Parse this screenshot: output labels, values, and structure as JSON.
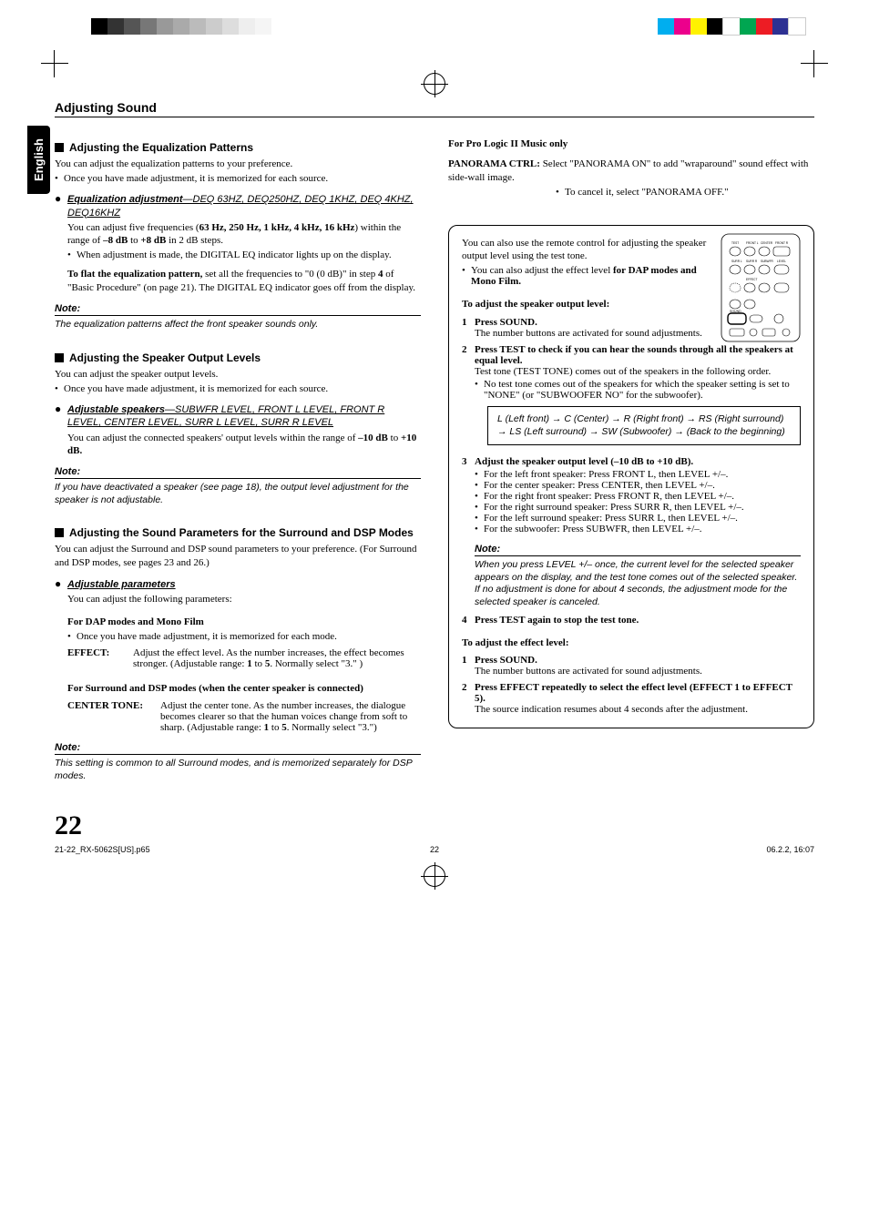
{
  "print": {
    "left_bar_colors": [
      "#000000",
      "#333333",
      "#555555",
      "#777777",
      "#999999",
      "#aaaaaa",
      "#bbbbbb",
      "#cccccc",
      "#dddddd",
      "#eeeeee",
      "#f5f5f5"
    ],
    "right_bar_colors": [
      "#00aeef",
      "#ec008c",
      "#fff200",
      "#000000",
      "#ffffff",
      "#00a651",
      "#ed1c24",
      "#2e3192",
      "#ffffff"
    ]
  },
  "page_number": "22",
  "section_title": "Adjusting Sound",
  "side_tab": "English",
  "left": {
    "eq": {
      "heading": "Adjusting the Equalization Patterns",
      "intro": "You can adjust the equalization patterns to your preference.",
      "intro_bullet": "Once you have made adjustment, it is memorized for each source.",
      "sub_label": "Equalization adjustment",
      "sub_suffix": "—DEQ 63HZ, DEQ250HZ, DEQ 1KHZ, DEQ 4KHZ, DEQ16KHZ",
      "body1_a": "You can adjust five frequencies (",
      "body1_b": "63 Hz, 250 Hz, 1 kHz, 4 kHz, 16 kHz",
      "body1_c": ") within the range of ",
      "body1_d": "–8 dB",
      "body1_e": " to ",
      "body1_f": "+8 dB",
      "body1_g": " in 2 dB steps.",
      "body2": "When adjustment is made, the DIGITAL EQ indicator lights up on the display.",
      "flat_a": "To flat the equalization pattern,",
      "flat_b": " set all the frequencies to \"0 (0 dB)\" in step ",
      "flat_c": "4",
      "flat_d": " of \"Basic Procedure\" (on page 21). The DIGITAL EQ indicator goes off from the display.",
      "note_hd": "Note:",
      "note": "The equalization patterns affect the front speaker sounds only."
    },
    "spk": {
      "heading": "Adjusting the Speaker Output Levels",
      "intro": "You can adjust the speaker output levels.",
      "intro_bullet": "Once you have made adjustment, it is memorized for each source.",
      "sub_label": "Adjustable speakers",
      "sub_suffix": "—SUBWFR LEVEL, FRONT L LEVEL, FRONT R LEVEL, CENTER LEVEL, SURR L LEVEL, SURR R LEVEL",
      "body_a": "You can adjust the connected speakers' output levels within the range of ",
      "body_b": "–10 dB",
      "body_c": " to ",
      "body_d": "+10 dB.",
      "note_hd": "Note:",
      "note": "If you have deactivated a speaker (see page 18), the output level adjustment for the speaker is not adjustable."
    },
    "dsp": {
      "heading": "Adjusting the Sound Parameters for the Surround and DSP Modes",
      "intro": "You can adjust the Surround and DSP sound parameters to your preference. (For Surround and DSP modes, see pages 23 and 26.)",
      "sub_label": "Adjustable parameters",
      "sub_intro": "You can adjust the following parameters:",
      "dap_hd": "For DAP modes and Mono Film",
      "dap_bullet": "Once you have made adjustment, it is memorized for each mode.",
      "effect_k": "EFFECT:",
      "effect_v_a": "Adjust the effect level. As the number increases, the effect becomes stronger. (Adjustable range: ",
      "effect_v_b": "1",
      "effect_v_c": " to ",
      "effect_v_d": "5",
      "effect_v_e": ". Normally select \"3.\" )",
      "surr_hd": "For Surround and DSP modes (when the center speaker is connected)",
      "ct_k": "CENTER TONE:",
      "ct_v_a": "Adjust the center tone. As the number increases, the dialogue becomes clearer so that the human voices change from soft to sharp. (Adjustable range: ",
      "ct_v_b": "1",
      "ct_v_c": " to ",
      "ct_v_d": "5",
      "ct_v_e": ". Normally select \"3.\")",
      "note_hd": "Note:",
      "note": "This setting is common to all Surround modes, and is memorized separately for DSP modes."
    }
  },
  "right": {
    "pl2_hd": "For Pro Logic II Music only",
    "pan_k": "PANORAMA CTRL:",
    "pan_v1": "Select \"PANORAMA ON\" to add \"wraparound\" sound effect with side-wall image.",
    "pan_v2": "To cancel it, select \"PANORAMA OFF.\"",
    "box": {
      "intro1": "You can also use the remote control for adjusting the speaker output level using the test tone.",
      "intro2_a": "You can also adjust the effect level ",
      "intro2_b": "for DAP modes and Mono Film.",
      "adj_hd": "To adjust the speaker output level:",
      "s1_t": "Press SOUND.",
      "s1_b": "The number buttons are activated for sound adjustments.",
      "s2_t": "Press TEST to check if you can hear the sounds through all the speakers at equal level.",
      "s2_b1": "Test tone (TEST TONE) comes out of the speakers in the following order.",
      "s2_b2": "No test tone comes out of the speakers for which the speaker setting is set to \"NONE\" (or \"SUBWOOFER NO\" for the subwoofer).",
      "signal": "L (Left front) → C (Center) → R (Right front) → RS (Right surround) → LS (Left surround) → SW (Subwoofer) → (Back to the beginning)",
      "s3_t": "Adjust the speaker output level (–10 dB to +10 dB).",
      "s3_items": [
        "For the left front speaker: Press FRONT L, then LEVEL +/–.",
        "For the center speaker: Press CENTER, then LEVEL +/–.",
        "For the right front speaker: Press FRONT R, then LEVEL +/–.",
        "For the right surround speaker: Press SURR R, then LEVEL +/–.",
        "For the left surround speaker: Press SURR L, then LEVEL +/–.",
        "For the subwoofer: Press SUBWFR, then LEVEL +/–."
      ],
      "s3_note_hd": "Note:",
      "s3_note": "When you press LEVEL +/– once, the current level for the selected speaker appears on the display, and the test tone comes out of the selected speaker.\nIf no adjustment is done for about 4 seconds, the adjustment mode for the selected speaker is canceled.",
      "s4_t": "Press TEST again to stop the test tone.",
      "eff_hd": "To adjust the effect level:",
      "e1_t": "Press SOUND.",
      "e1_b": "The number buttons are activated for sound adjustments.",
      "e2_t": "Press EFFECT repeatedly to select the effect level (EFFECT 1 to EFFECT 5).",
      "e2_b": "The source indication resumes about 4 seconds after the adjustment."
    }
  },
  "footer": {
    "left": "21-22_RX-5062S[US].p65",
    "mid": "22",
    "right": "06.2.2, 16:07"
  },
  "remote_labels": {
    "r1": [
      "TEST",
      "FRONT L",
      "CENTER",
      "FRONT R"
    ],
    "r2": [
      "SURR L",
      "SURR R",
      "SUBWFR",
      "LEVEL"
    ],
    "r3": [
      "EFFECT"
    ],
    "sound": "SOUND"
  }
}
